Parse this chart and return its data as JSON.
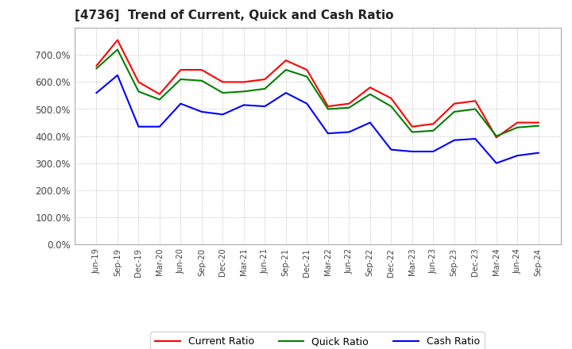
{
  "title": "[4736]  Trend of Current, Quick and Cash Ratio",
  "x_labels": [
    "Jun-19",
    "Sep-19",
    "Dec-19",
    "Mar-20",
    "Jun-20",
    "Sep-20",
    "Dec-20",
    "Mar-21",
    "Jun-21",
    "Sep-21",
    "Dec-21",
    "Mar-22",
    "Jun-22",
    "Sep-22",
    "Dec-22",
    "Mar-23",
    "Jun-23",
    "Sep-23",
    "Dec-23",
    "Mar-24",
    "Jun-24",
    "Sep-24"
  ],
  "current_ratio": [
    660,
    755,
    600,
    555,
    645,
    645,
    600,
    600,
    610,
    680,
    645,
    510,
    520,
    580,
    540,
    435,
    445,
    520,
    530,
    395,
    450,
    450
  ],
  "quick_ratio": [
    650,
    720,
    565,
    535,
    610,
    605,
    560,
    565,
    575,
    645,
    620,
    500,
    505,
    555,
    510,
    415,
    420,
    490,
    500,
    400,
    432,
    438
  ],
  "cash_ratio": [
    560,
    625,
    435,
    435,
    520,
    490,
    480,
    515,
    510,
    560,
    520,
    410,
    415,
    450,
    350,
    343,
    343,
    385,
    390,
    300,
    328,
    338
  ],
  "current_color": "#ff0000",
  "quick_color": "#008000",
  "cash_color": "#0000ff",
  "ylim": [
    0,
    800
  ],
  "ytick_values": [
    0,
    100,
    200,
    300,
    400,
    500,
    600,
    700
  ],
  "ytick_labels": [
    "0.0%",
    "100.0%",
    "200.0%",
    "300.0%",
    "400.0%",
    "500.0%",
    "600.0%",
    "700.0%"
  ],
  "background_color": "#ffffff",
  "grid_color": "#999999",
  "legend_labels": [
    "Current Ratio",
    "Quick Ratio",
    "Cash Ratio"
  ]
}
